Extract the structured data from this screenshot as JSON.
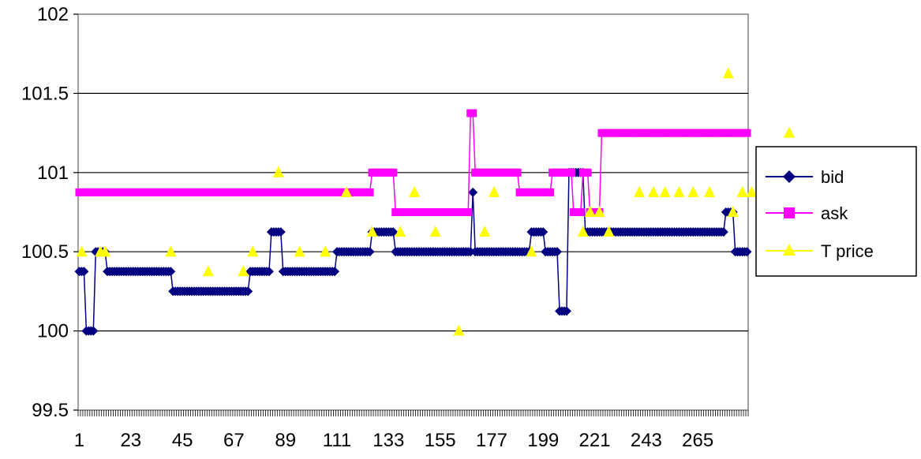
{
  "chart_data": {
    "type": "line",
    "title": "",
    "xlabel": "",
    "ylabel": "",
    "ylim": [
      99.5,
      102
    ],
    "y_ticks": [
      99.5,
      100,
      100.5,
      101,
      101.5,
      102
    ],
    "y_tick_labels": [
      "99.5",
      "100",
      "100.5",
      "101",
      "101.5",
      "102"
    ],
    "x_count": 286,
    "x_tick_labels": [
      "1",
      "23",
      "45",
      "67",
      "89",
      "111",
      "133",
      "155",
      "177",
      "199",
      "221",
      "243",
      "265"
    ],
    "grid": "horizontal",
    "legend": "right",
    "series": [
      {
        "name": "bid",
        "color": "#000080",
        "marker": "diamond",
        "segments": [
          [
            1,
            3,
            100.375
          ],
          [
            4,
            7,
            100.0
          ],
          [
            8,
            12,
            100.5
          ],
          [
            13,
            40,
            100.375
          ],
          [
            41,
            73,
            100.25
          ],
          [
            74,
            82,
            100.375
          ],
          [
            83,
            87,
            100.625
          ],
          [
            88,
            110,
            100.375
          ],
          [
            111,
            125,
            100.5
          ],
          [
            126,
            135,
            100.625
          ],
          [
            136,
            168,
            100.5
          ],
          [
            169,
            169,
            100.875
          ],
          [
            170,
            193,
            100.5
          ],
          [
            194,
            199,
            100.625
          ],
          [
            200,
            205,
            100.5
          ],
          [
            206,
            209,
            100.125
          ],
          [
            210,
            216,
            101.0
          ],
          [
            217,
            276,
            100.625
          ],
          [
            277,
            280,
            100.75
          ],
          [
            281,
            286,
            100.5
          ]
        ]
      },
      {
        "name": "ask",
        "color": "#ff00ff",
        "marker": "square",
        "segments": [
          [
            1,
            125,
            100.875
          ],
          [
            126,
            135,
            101.0
          ],
          [
            136,
            167,
            100.75
          ],
          [
            168,
            169,
            101.375
          ],
          [
            170,
            188,
            101.0
          ],
          [
            189,
            202,
            100.875
          ],
          [
            203,
            211,
            101.0
          ],
          [
            212,
            215,
            100.75
          ],
          [
            216,
            218,
            101.0
          ],
          [
            219,
            223,
            100.75
          ],
          [
            224,
            286,
            101.25
          ]
        ]
      },
      {
        "name": "T price",
        "color": "#ffff00",
        "marker": "triangle",
        "points": [
          [
            2,
            100.5
          ],
          [
            10,
            100.5
          ],
          [
            12,
            100.5
          ],
          [
            40,
            100.5
          ],
          [
            56,
            100.375
          ],
          [
            71,
            100.375
          ],
          [
            75,
            100.5
          ],
          [
            86,
            101.0
          ],
          [
            95,
            100.5
          ],
          [
            106,
            100.5
          ],
          [
            115,
            100.875
          ],
          [
            126,
            100.625
          ],
          [
            138,
            100.625
          ],
          [
            144,
            100.875
          ],
          [
            153,
            100.625
          ],
          [
            163,
            100.0
          ],
          [
            174,
            100.625
          ],
          [
            178,
            100.875
          ],
          [
            194,
            100.5
          ],
          [
            216,
            100.625
          ],
          [
            219,
            100.75
          ],
          [
            223,
            100.75
          ],
          [
            227,
            100.625
          ],
          [
            240,
            100.875
          ],
          [
            246,
            100.875
          ],
          [
            251,
            100.875
          ],
          [
            257,
            100.875
          ],
          [
            263,
            100.875
          ],
          [
            270,
            100.875
          ],
          [
            278,
            101.625
          ],
          [
            280,
            100.75
          ],
          [
            284,
            100.875
          ],
          [
            288,
            100.875
          ],
          [
            292,
            100.875
          ],
          [
            304,
            101.25
          ]
        ]
      }
    ]
  }
}
